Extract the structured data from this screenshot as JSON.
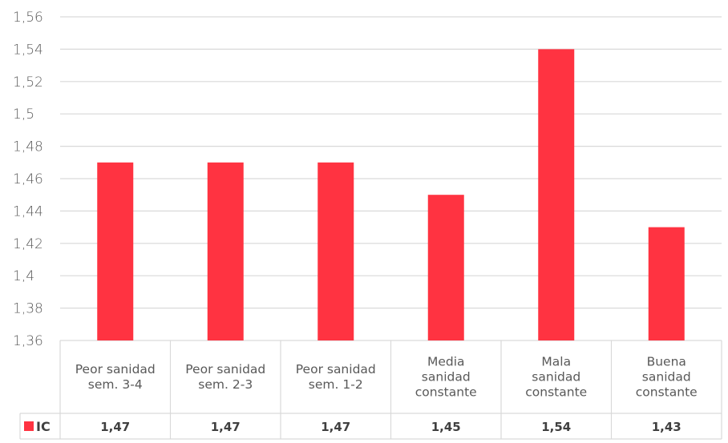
{
  "chart_data": {
    "type": "bar",
    "categories": [
      [
        "Peor sanidad",
        "sem. 3-4"
      ],
      [
        "Peor sanidad",
        "sem. 2-3"
      ],
      [
        "Peor sanidad",
        "sem. 1-2"
      ],
      [
        "Media",
        "sanidad",
        "constante"
      ],
      [
        "Mala",
        "sanidad",
        "constante"
      ],
      [
        "Buena",
        "sanidad",
        "constante"
      ]
    ],
    "series": [
      {
        "name": "IC",
        "values": [
          1.47,
          1.47,
          1.47,
          1.45,
          1.54,
          1.43
        ],
        "labels": [
          "1,47",
          "1,47",
          "1,47",
          "1,45",
          "1,54",
          "1,43"
        ]
      }
    ],
    "ylim": [
      1.36,
      1.56
    ],
    "yticks": [
      1.36,
      1.38,
      1.4,
      1.42,
      1.44,
      1.46,
      1.48,
      1.5,
      1.52,
      1.54,
      1.56
    ],
    "ytick_labels": [
      "1,36",
      "1,38",
      "1,4",
      "1,42",
      "1,44",
      "1,46",
      "1,48",
      "1,5",
      "1,52",
      "1,54",
      "1,56"
    ],
    "grid": true,
    "legend_placement": "data-table-left",
    "bar_color": "#ff3341",
    "grid_color": "#d9d9d9"
  }
}
